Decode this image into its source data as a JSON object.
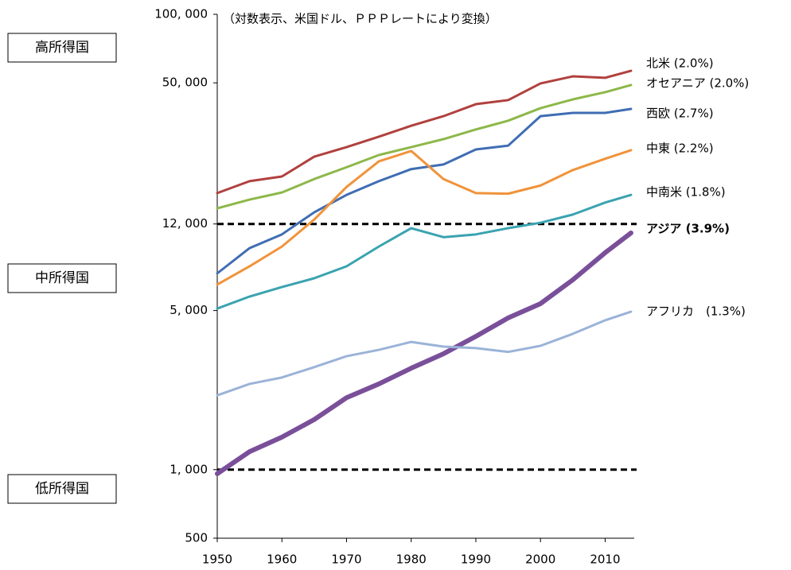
{
  "chart_data": {
    "type": "line",
    "annotation": "（対数表示、米国ドル、ＰＰＰレートにより変換）",
    "income_groups": [
      "高所得国",
      "中所得国",
      "低所得国"
    ],
    "log_scale": true,
    "x": [
      1950,
      1955,
      1960,
      1965,
      1970,
      1975,
      1980,
      1985,
      1990,
      1995,
      2000,
      2005,
      2010,
      2014
    ],
    "xlim": [
      1950,
      2014.5
    ],
    "xticks": [
      1950,
      1960,
      1970,
      1980,
      1990,
      2000,
      2010
    ],
    "ylim": [
      500,
      100000
    ],
    "yticks": [
      {
        "value": 500,
        "label": "500"
      },
      {
        "value": 1000,
        "label": "1, 000"
      },
      {
        "value": 5000,
        "label": "5, 000"
      },
      {
        "value": 12000,
        "label": "12, 000"
      },
      {
        "value": 50000,
        "label": "50, 000"
      },
      {
        "value": 100000,
        "label": "100, 000"
      }
    ],
    "reference_lines": [
      12000,
      1000
    ],
    "series": [
      {
        "name": "北米 (2.0%)",
        "color": "#b0413e",
        "width": 3,
        "values": [
          16400,
          18500,
          19400,
          23700,
          26100,
          29000,
          32400,
          35700,
          40300,
          42000,
          49700,
          53400,
          52600,
          56500
        ]
      },
      {
        "name": "オセアニア (2.0%)",
        "color": "#8db84a",
        "width": 3,
        "values": [
          14060,
          15350,
          16500,
          18900,
          21300,
          24100,
          26100,
          28300,
          31200,
          34100,
          38700,
          42300,
          45500,
          48900
        ]
      },
      {
        "name": "西欧 (2.7%)",
        "color": "#3f6db3",
        "width": 3,
        "values": [
          7280,
          9400,
          10800,
          13500,
          16100,
          18500,
          20900,
          21900,
          25500,
          26500,
          35700,
          36900,
          36900,
          38400
        ]
      },
      {
        "name": "中東 (2.2%)",
        "color": "#f0933a",
        "width": 3,
        "values": [
          6500,
          7820,
          9550,
          12550,
          17450,
          22600,
          25100,
          18900,
          16400,
          16300,
          17700,
          20700,
          23200,
          25300
        ]
      },
      {
        "name": "中南米 (1.8%)",
        "color": "#3aa3b0",
        "width": 3,
        "values": [
          5100,
          5760,
          6340,
          6930,
          7820,
          9550,
          11500,
          10500,
          10800,
          11500,
          12150,
          13200,
          14900,
          16100
        ]
      },
      {
        "name": "アジア (3.9%)",
        "color": "#7a4f9a",
        "width": 6,
        "values": [
          960,
          1200,
          1390,
          1660,
          2070,
          2380,
          2790,
          3230,
          3850,
          4640,
          5360,
          6820,
          8970,
          10960
        ]
      },
      {
        "name": "アフリカ　(1.3%)",
        "color": "#9bb3d8",
        "width": 3,
        "values": [
          2120,
          2380,
          2540,
          2820,
          3150,
          3360,
          3640,
          3470,
          3420,
          3290,
          3500,
          3950,
          4530,
          4940
        ]
      }
    ]
  }
}
